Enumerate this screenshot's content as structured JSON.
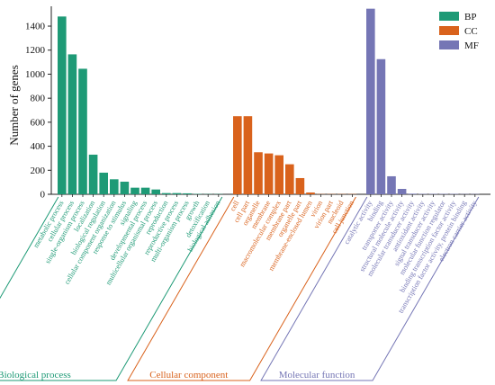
{
  "chart_data": {
    "type": "bar",
    "ylabel": "Number of genes",
    "xlabel": "",
    "ylim": [
      0,
      1550
    ],
    "yticks": [
      0,
      200,
      400,
      600,
      800,
      1000,
      1200,
      1400
    ],
    "legend": {
      "placement": "top-right",
      "items": [
        {
          "key": "BP",
          "label": "BP",
          "color": "#1e9a76"
        },
        {
          "key": "CC",
          "label": "CC",
          "color": "#d9621c"
        },
        {
          "key": "MF",
          "label": "MF",
          "color": "#7576b5"
        }
      ]
    },
    "groups": [
      {
        "key": "BP",
        "label": "Biological process",
        "color": "#1e9a76",
        "categories": [
          "metabolic process",
          "cellular process",
          "single-organism process",
          "localization",
          "biological regulation",
          "cellular component organization",
          "response to stimulus",
          "signaling",
          "developmental process",
          "multicellular organismal process",
          "reproduction",
          "reproductive process",
          "multi-organism process",
          "growth",
          "detoxification",
          "biological adhesion"
        ],
        "values": [
          1480,
          1165,
          1045,
          330,
          180,
          125,
          105,
          55,
          55,
          40,
          10,
          10,
          8,
          3,
          2,
          2
        ]
      },
      {
        "key": "CC",
        "label": "Cellular component",
        "color": "#d9621c",
        "categories": [
          "cell",
          "cell part",
          "organelle",
          "membrane",
          "macromolecular complex",
          "membrane part",
          "organelle part",
          "membrane-enclosed lumen",
          "virion",
          "virion part",
          "nucleoid",
          "cell junction"
        ],
        "values": [
          650,
          650,
          350,
          340,
          325,
          250,
          135,
          15,
          2,
          2,
          2,
          2
        ]
      },
      {
        "key": "MF",
        "label": "Molecular function",
        "color": "#7576b5",
        "categories": [
          "catalytic activity",
          "binding",
          "transporter activity",
          "structural molecule activity",
          "molecular transducer activity",
          "antioxidant activity",
          "signal transducer activity",
          "molecular function regulator",
          "binding transcription factor activity",
          "transcription factor activity, protein binding",
          "electron carrier activity"
        ],
        "values": [
          1545,
          1125,
          150,
          45,
          5,
          3,
          3,
          3,
          3,
          2,
          2
        ]
      }
    ]
  }
}
